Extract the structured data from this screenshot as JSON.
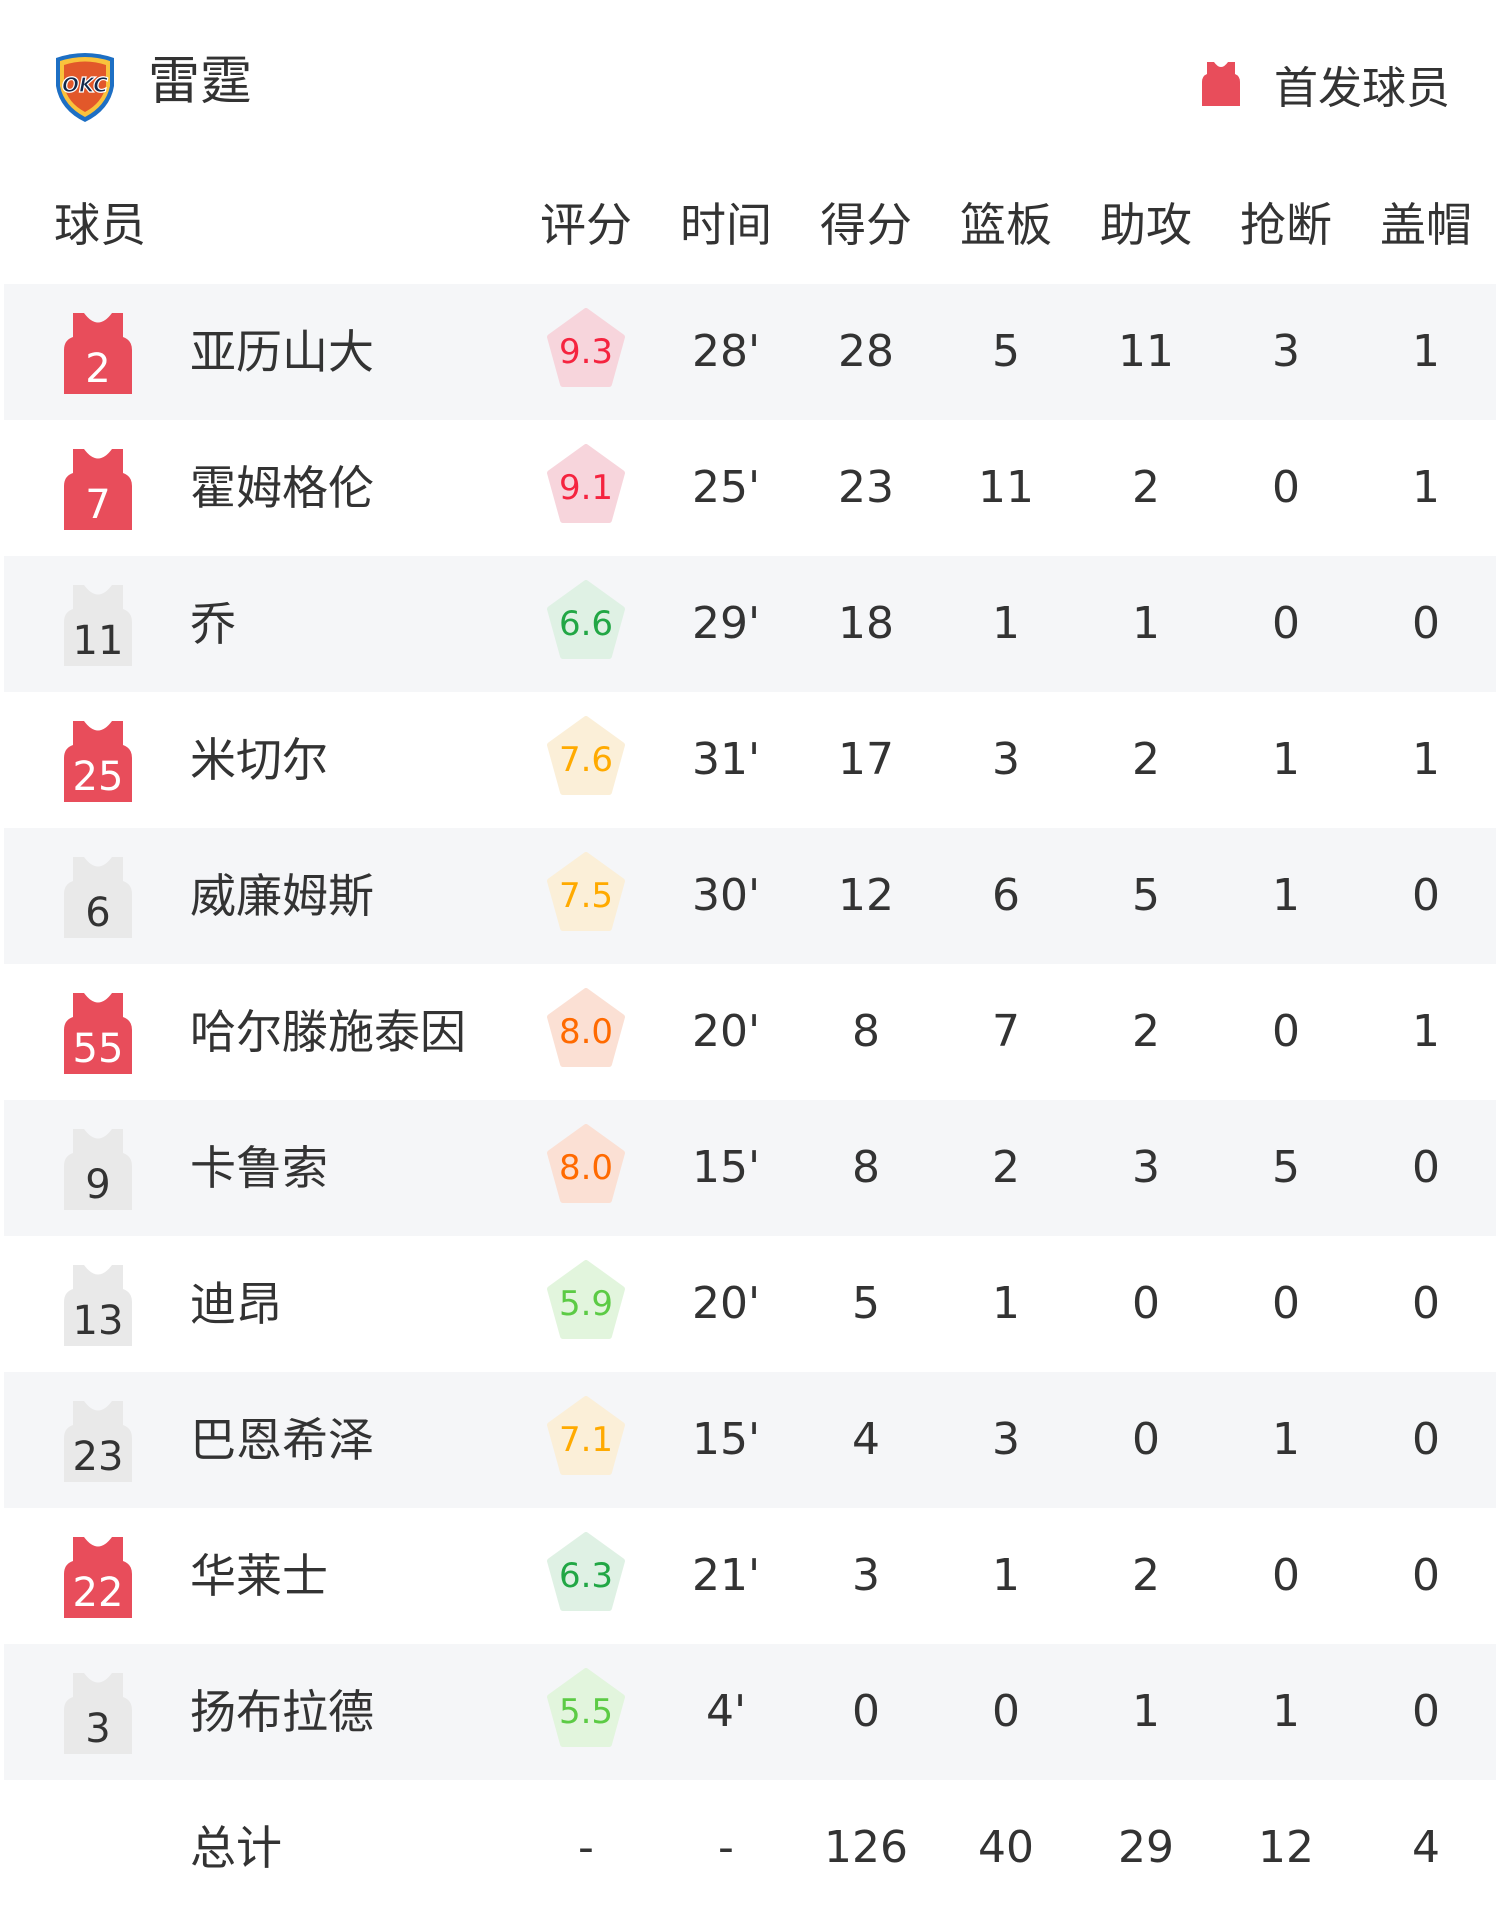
{
  "header": {
    "team_name": "雷霆",
    "logo_text": "OKC",
    "legend_label": "首发球员",
    "legend_icon": "jersey-icon",
    "starter_color": "#e84d5b"
  },
  "columns": [
    "球员",
    "评分",
    "时间",
    "得分",
    "篮板",
    "助攻",
    "抢断",
    "盖帽"
  ],
  "players": [
    {
      "number": "2",
      "name": "亚历山大",
      "starter": true,
      "rating": "9.3",
      "rating_level": "red",
      "time": "28'",
      "pts": "28",
      "reb": "5",
      "ast": "11",
      "stl": "3",
      "blk": "1"
    },
    {
      "number": "7",
      "name": "霍姆格伦",
      "starter": true,
      "rating": "9.1",
      "rating_level": "red",
      "time": "25'",
      "pts": "23",
      "reb": "11",
      "ast": "2",
      "stl": "0",
      "blk": "1"
    },
    {
      "number": "11",
      "name": "乔",
      "starter": false,
      "rating": "6.6",
      "rating_level": "green",
      "time": "29'",
      "pts": "18",
      "reb": "1",
      "ast": "1",
      "stl": "0",
      "blk": "0"
    },
    {
      "number": "25",
      "name": "米切尔",
      "starter": true,
      "rating": "7.6",
      "rating_level": "yellow",
      "time": "31'",
      "pts": "17",
      "reb": "3",
      "ast": "2",
      "stl": "1",
      "blk": "1"
    },
    {
      "number": "6",
      "name": "威廉姆斯",
      "starter": false,
      "rating": "7.5",
      "rating_level": "yellow",
      "time": "30'",
      "pts": "12",
      "reb": "6",
      "ast": "5",
      "stl": "1",
      "blk": "0"
    },
    {
      "number": "55",
      "name": "哈尔滕施泰因",
      "starter": true,
      "rating": "8.0",
      "rating_level": "orange",
      "time": "20'",
      "pts": "8",
      "reb": "7",
      "ast": "2",
      "stl": "0",
      "blk": "1"
    },
    {
      "number": "9",
      "name": "卡鲁索",
      "starter": false,
      "rating": "8.0",
      "rating_level": "orange",
      "time": "15'",
      "pts": "8",
      "reb": "2",
      "ast": "3",
      "stl": "5",
      "blk": "0"
    },
    {
      "number": "13",
      "name": "迪昂",
      "starter": false,
      "rating": "5.9",
      "rating_level": "lightgreen",
      "time": "20'",
      "pts": "5",
      "reb": "1",
      "ast": "0",
      "stl": "0",
      "blk": "0"
    },
    {
      "number": "23",
      "name": "巴恩希泽",
      "starter": false,
      "rating": "7.1",
      "rating_level": "yellow",
      "time": "15'",
      "pts": "4",
      "reb": "3",
      "ast": "0",
      "stl": "1",
      "blk": "0"
    },
    {
      "number": "22",
      "name": "华莱士",
      "starter": true,
      "rating": "6.3",
      "rating_level": "green",
      "time": "21'",
      "pts": "3",
      "reb": "1",
      "ast": "2",
      "stl": "0",
      "blk": "0"
    },
    {
      "number": "3",
      "name": "扬布拉德",
      "starter": false,
      "rating": "5.5",
      "rating_level": "lightgreen",
      "time": "4'",
      "pts": "0",
      "reb": "0",
      "ast": "1",
      "stl": "1",
      "blk": "0"
    }
  ],
  "totals": {
    "label": "总计",
    "rating": "-",
    "time": "-",
    "pts": "126",
    "reb": "40",
    "ast": "29",
    "stl": "12",
    "blk": "4"
  },
  "rating_colors": {
    "red": {
      "text": "#f5243f",
      "bg": "#f7d5dc"
    },
    "green": {
      "text": "#22a745",
      "bg": "#dff1e4"
    },
    "lightgreen": {
      "text": "#5ccb45",
      "bg": "#e2f5dd"
    },
    "yellow": {
      "text": "#ffaa00",
      "bg": "#fbefd8"
    },
    "orange": {
      "text": "#ff6a00",
      "bg": "#fbe0d4"
    }
  },
  "bench_jersey_color": "#e9e9e9"
}
